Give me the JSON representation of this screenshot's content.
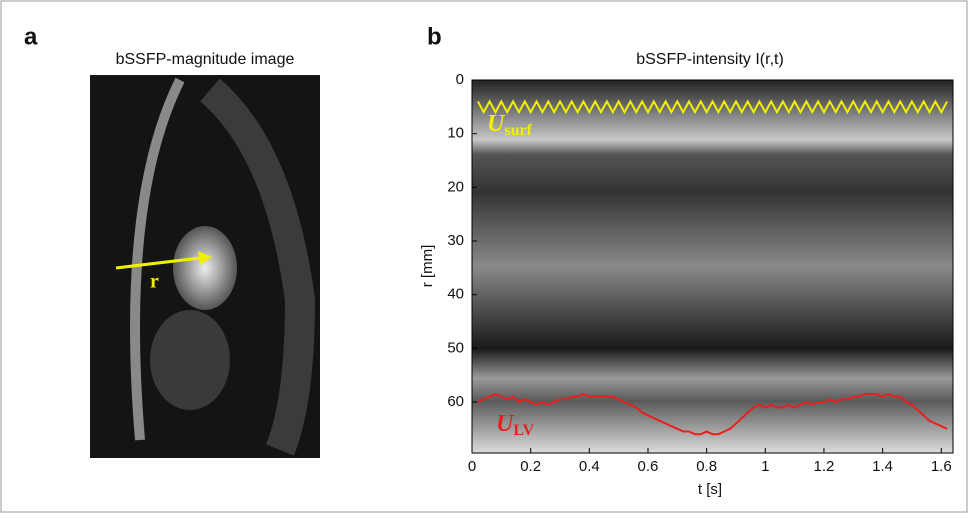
{
  "panel_a": {
    "label": "a",
    "title": "bSSFP-magnitude image",
    "arrow_label": "r"
  },
  "panel_b": {
    "label": "b"
  },
  "chart_data": {
    "type": "line",
    "title": "bSSFP-intensity I(r,t)",
    "x_label": "t [s]",
    "y_label": "r [mm]",
    "xlim": [
      0,
      1.64
    ],
    "ylim": [
      0,
      69.5
    ],
    "y_inverted": true,
    "xticks": [
      0,
      0.2,
      0.4,
      0.6,
      0.8,
      1,
      1.2,
      1.4,
      1.6
    ],
    "yticks": [
      0,
      10,
      20,
      30,
      40,
      50,
      60
    ],
    "x": [
      0.02,
      0.04,
      0.06,
      0.08,
      0.1,
      0.12,
      0.14,
      0.16,
      0.18,
      0.2,
      0.22,
      0.24,
      0.26,
      0.28,
      0.3,
      0.32,
      0.34,
      0.36,
      0.38,
      0.4,
      0.42,
      0.44,
      0.46,
      0.48,
      0.5,
      0.52,
      0.54,
      0.56,
      0.58,
      0.6,
      0.62,
      0.64,
      0.66,
      0.68,
      0.7,
      0.72,
      0.74,
      0.76,
      0.78,
      0.8,
      0.82,
      0.84,
      0.86,
      0.88,
      0.9,
      0.92,
      0.94,
      0.96,
      0.98,
      1,
      1.02,
      1.04,
      1.06,
      1.08,
      1.1,
      1.12,
      1.14,
      1.16,
      1.18,
      1.2,
      1.22,
      1.24,
      1.26,
      1.28,
      1.3,
      1.32,
      1.34,
      1.36,
      1.38,
      1.4,
      1.42,
      1.44,
      1.46,
      1.48,
      1.5,
      1.52,
      1.54,
      1.56,
      1.58,
      1.6,
      1.62
    ],
    "series": [
      {
        "name": "U",
        "subscript": "surf",
        "color": "#f0f000",
        "values": [
          4,
          6,
          4,
          6,
          4,
          6,
          4,
          6,
          4,
          6,
          4,
          6,
          4,
          6,
          4,
          6,
          4,
          6,
          4,
          6,
          4,
          6,
          4,
          6,
          4,
          6,
          4,
          6,
          4,
          6,
          4,
          6,
          4,
          6,
          4,
          6,
          4,
          6,
          4,
          6,
          4,
          6,
          4,
          6,
          4,
          6,
          4,
          6,
          4,
          6,
          4,
          6,
          4,
          6,
          4,
          6,
          4,
          6,
          4,
          6,
          4,
          6,
          4,
          6,
          4,
          6,
          4,
          6,
          4,
          6,
          4,
          6,
          4,
          6,
          4,
          6,
          4,
          6,
          4,
          6,
          4
        ]
      },
      {
        "name": "U",
        "subscript": "LV",
        "color": "#e8201c",
        "values": [
          60,
          59.5,
          59,
          58.5,
          59,
          59.5,
          59,
          60,
          59.5,
          60,
          60.5,
          60,
          60.5,
          60,
          59.5,
          59.5,
          59,
          59,
          58.5,
          59,
          59,
          59,
          59,
          59,
          59.5,
          60,
          60.5,
          61,
          62,
          62.5,
          63,
          63.5,
          64,
          64.5,
          65,
          65.5,
          65.5,
          66,
          66,
          65.5,
          66,
          66,
          65.5,
          65,
          64,
          63,
          62,
          61,
          60.5,
          61,
          60.5,
          61,
          61,
          60.5,
          61,
          60.5,
          60,
          60.5,
          60,
          60,
          59.5,
          60,
          59.5,
          59.5,
          59,
          59,
          58.5,
          58.5,
          58.5,
          59,
          58.5,
          59,
          59,
          60,
          60.5,
          61.5,
          62.5,
          63.5,
          64,
          64.5,
          65
        ]
      }
    ]
  }
}
